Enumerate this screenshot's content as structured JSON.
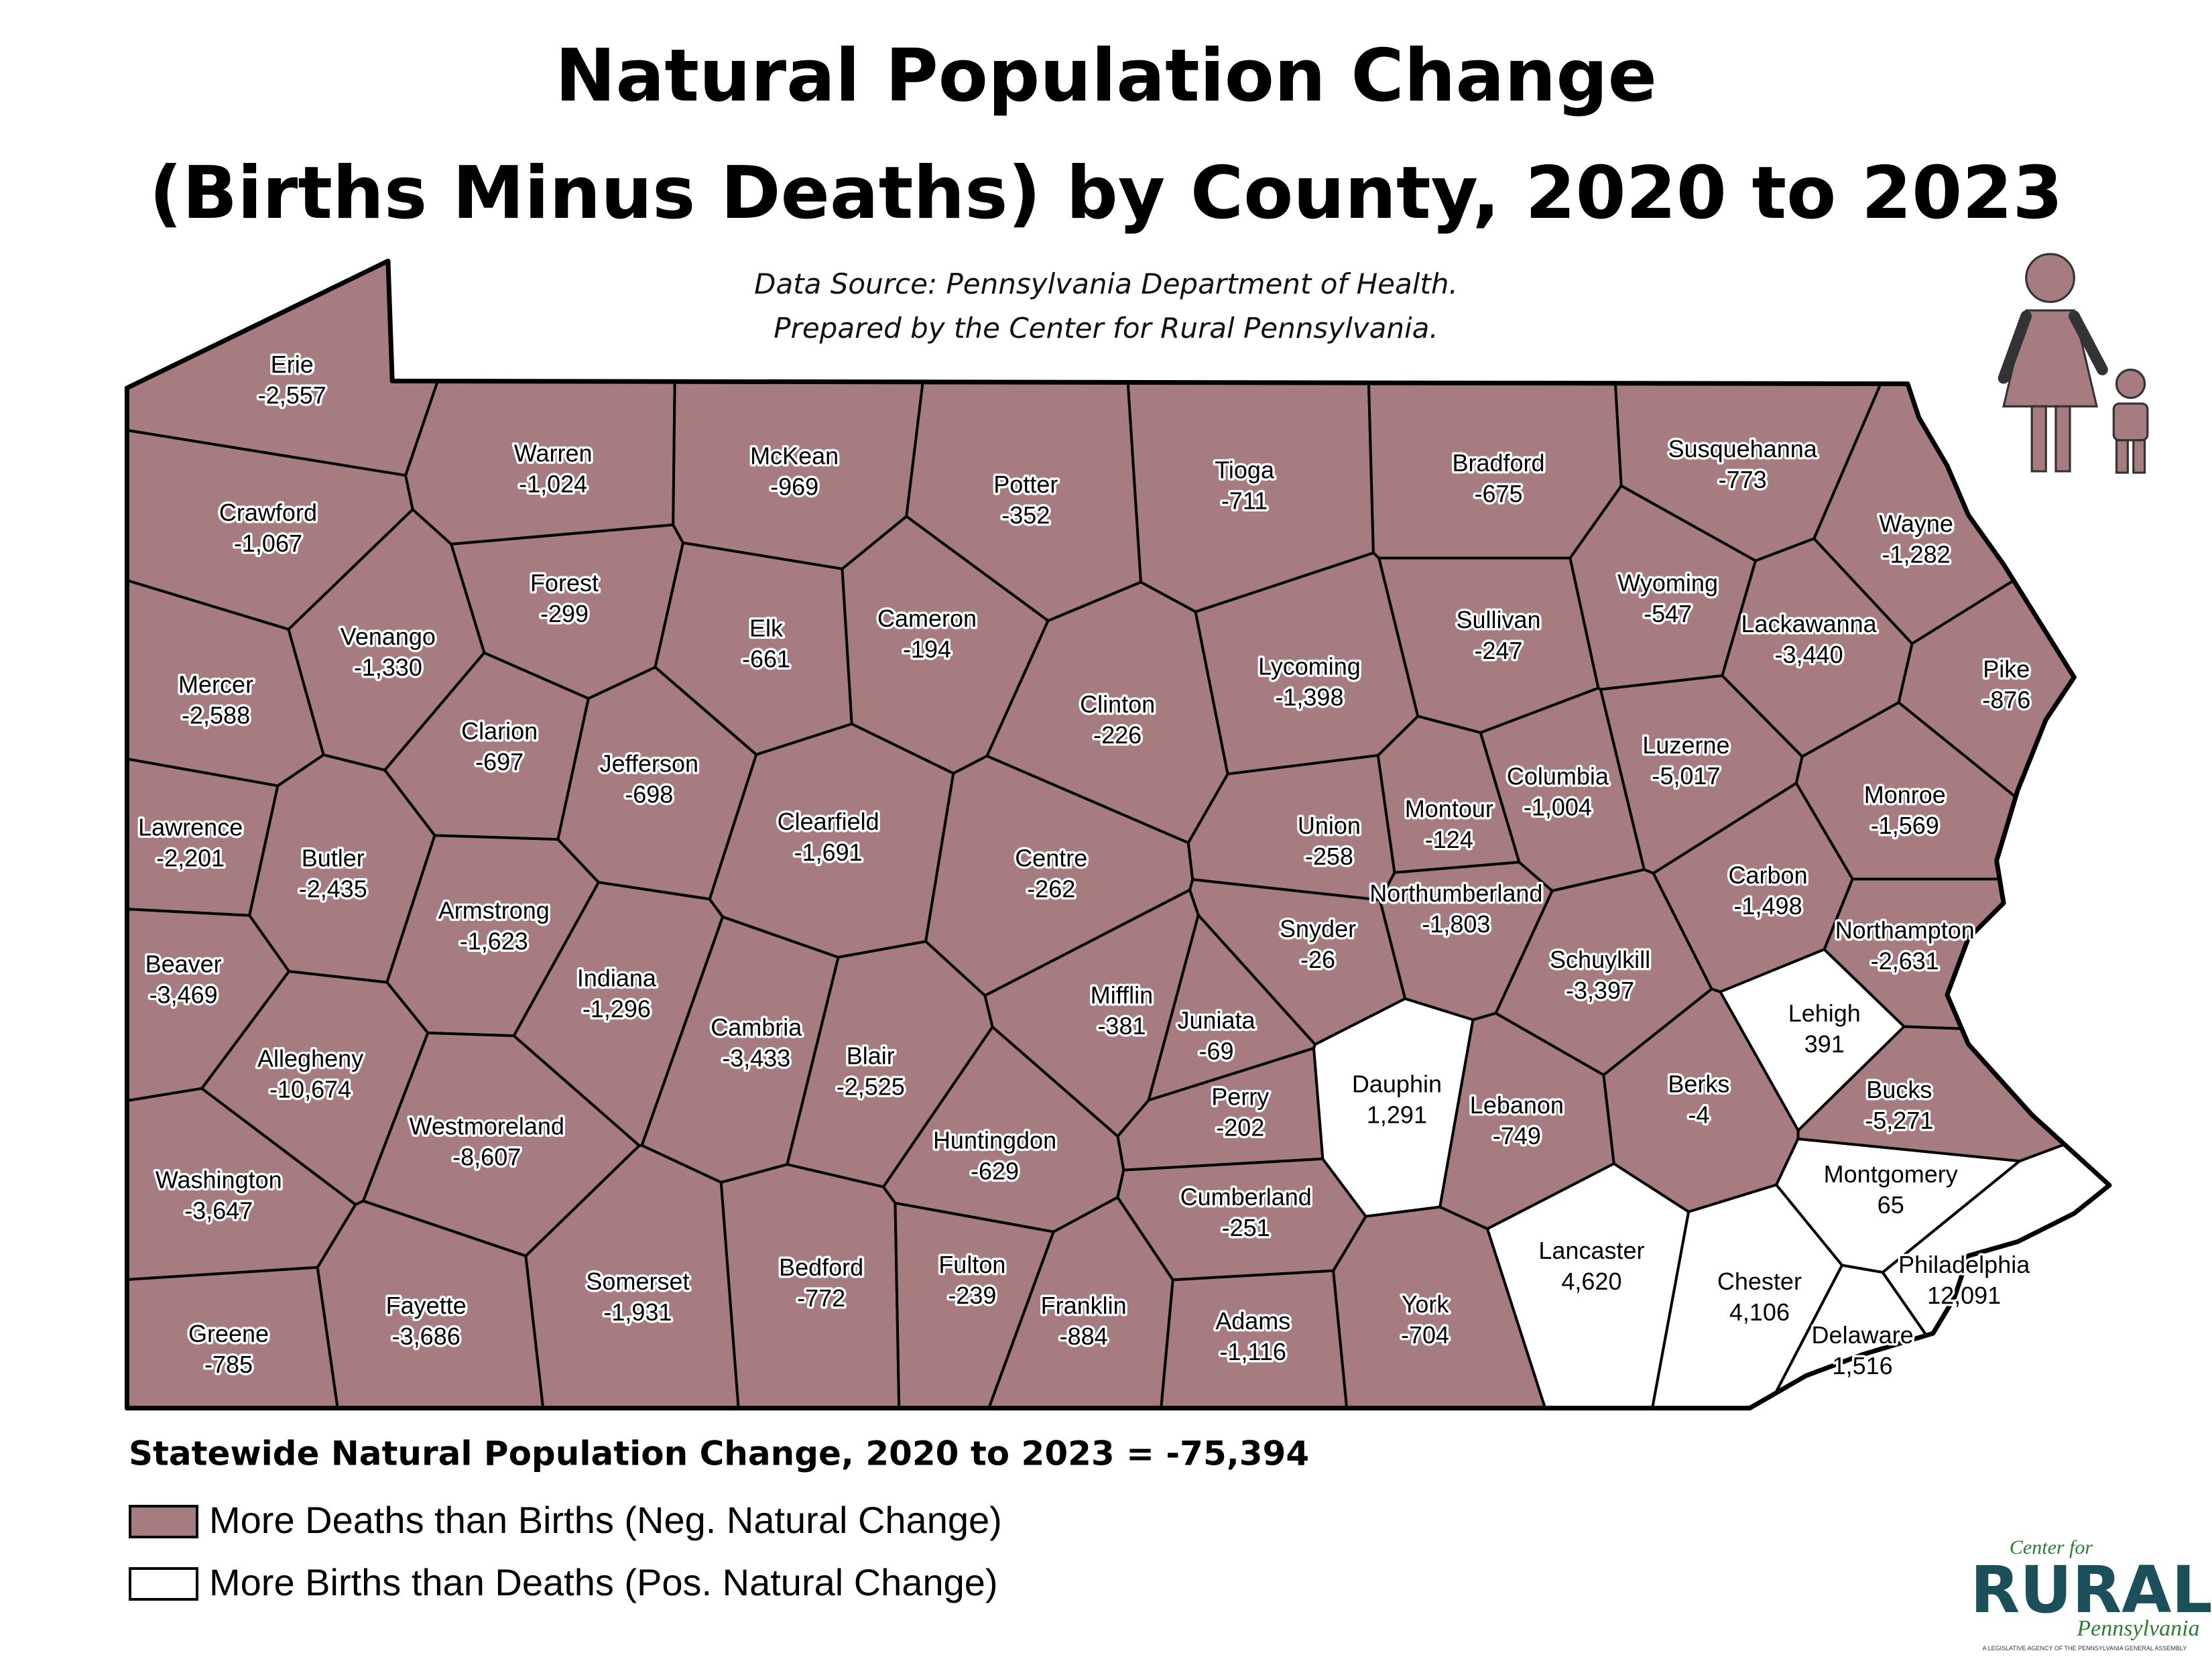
{
  "title": [
    "Natural Population Change",
    "(Births Minus Deaths) by County, 2020 to 2023"
  ],
  "source": [
    "Data Source: Pennsylvania Department of Health.",
    "Prepared by the Center for Rural Pennsylvania."
  ],
  "counties": [
    {
      "name": "Erie",
      "value": -2557,
      "value_label": "-2,557"
    },
    {
      "name": "Crawford",
      "value": -1067,
      "value_label": "-1,067"
    },
    {
      "name": "Mercer",
      "value": -2588,
      "value_label": "-2,588"
    },
    {
      "name": "Lawrence",
      "value": -2201,
      "value_label": "-2,201"
    },
    {
      "name": "Beaver",
      "value": -3469,
      "value_label": "-3,469"
    },
    {
      "name": "Washington",
      "value": -3647,
      "value_label": "-3,647"
    },
    {
      "name": "Greene",
      "value": -785,
      "value_label": "-785"
    },
    {
      "name": "Warren",
      "value": -1024,
      "value_label": "-1,024"
    },
    {
      "name": "Forest",
      "value": -299,
      "value_label": "-299"
    },
    {
      "name": "Venango",
      "value": -1330,
      "value_label": "-1,330"
    },
    {
      "name": "Clarion",
      "value": -697,
      "value_label": "-697"
    },
    {
      "name": "Butler",
      "value": -2435,
      "value_label": "-2,435"
    },
    {
      "name": "Armstrong",
      "value": -1623,
      "value_label": "-1,623"
    },
    {
      "name": "Allegheny",
      "value": -10674,
      "value_label": "-10,674"
    },
    {
      "name": "Westmoreland",
      "value": -8607,
      "value_label": "-8,607"
    },
    {
      "name": "Fayette",
      "value": -3686,
      "value_label": "-3,686"
    },
    {
      "name": "McKean",
      "value": -969,
      "value_label": "-969"
    },
    {
      "name": "Elk",
      "value": -661,
      "value_label": "-661"
    },
    {
      "name": "Jefferson",
      "value": -698,
      "value_label": "-698"
    },
    {
      "name": "Indiana",
      "value": -1296,
      "value_label": "-1,296"
    },
    {
      "name": "Cambria",
      "value": -3433,
      "value_label": "-3,433"
    },
    {
      "name": "Somerset",
      "value": -1931,
      "value_label": "-1,931"
    },
    {
      "name": "Potter",
      "value": -352,
      "value_label": "-352"
    },
    {
      "name": "Cameron",
      "value": -194,
      "value_label": "-194"
    },
    {
      "name": "Clearfield",
      "value": -1691,
      "value_label": "-1,691"
    },
    {
      "name": "Centre",
      "value": -262,
      "value_label": "-262"
    },
    {
      "name": "Blair",
      "value": -2525,
      "value_label": "-2,525"
    },
    {
      "name": "Bedford",
      "value": -772,
      "value_label": "-772"
    },
    {
      "name": "Huntingdon",
      "value": -629,
      "value_label": "-629"
    },
    {
      "name": "Fulton",
      "value": -239,
      "value_label": "-239"
    },
    {
      "name": "Tioga",
      "value": -711,
      "value_label": "-711"
    },
    {
      "name": "Clinton",
      "value": -226,
      "value_label": "-226"
    },
    {
      "name": "Lycoming",
      "value": -1398,
      "value_label": "-1,398"
    },
    {
      "name": "Mifflin",
      "value": -381,
      "value_label": "-381"
    },
    {
      "name": "Juniata",
      "value": -69,
      "value_label": "-69"
    },
    {
      "name": "Franklin",
      "value": -884,
      "value_label": "-884"
    },
    {
      "name": "Bradford",
      "value": -675,
      "value_label": "-675"
    },
    {
      "name": "Sullivan",
      "value": -247,
      "value_label": "-247"
    },
    {
      "name": "Union",
      "value": -258,
      "value_label": "-258"
    },
    {
      "name": "Snyder",
      "value": -26,
      "value_label": "-26"
    },
    {
      "name": "Perry",
      "value": -202,
      "value_label": "-202"
    },
    {
      "name": "Cumberland",
      "value": -251,
      "value_label": "-251"
    },
    {
      "name": "Adams",
      "value": -1116,
      "value_label": "-1,116"
    },
    {
      "name": "Montour",
      "value": -124,
      "value_label": "-124"
    },
    {
      "name": "Northumberland",
      "value": -1803,
      "value_label": "-1,803"
    },
    {
      "name": "Columbia",
      "value": -1004,
      "value_label": "-1,004"
    },
    {
      "name": "Dauphin",
      "value": 1291,
      "value_label": "1,291"
    },
    {
      "name": "York",
      "value": -704,
      "value_label": "-704"
    },
    {
      "name": "Lebanon",
      "value": -749,
      "value_label": "-749"
    },
    {
      "name": "Lancaster",
      "value": 4620,
      "value_label": "4,620"
    },
    {
      "name": "Susquehanna",
      "value": -773,
      "value_label": "-773"
    },
    {
      "name": "Wyoming",
      "value": -547,
      "value_label": "-547"
    },
    {
      "name": "Lackawanna",
      "value": -3440,
      "value_label": "-3,440"
    },
    {
      "name": "Luzerne",
      "value": -5017,
      "value_label": "-5,017"
    },
    {
      "name": "Schuylkill",
      "value": -3397,
      "value_label": "-3,397"
    },
    {
      "name": "Berks",
      "value": -4,
      "value_label": "-4"
    },
    {
      "name": "Chester",
      "value": 4106,
      "value_label": "4,106"
    },
    {
      "name": "Carbon",
      "value": -1498,
      "value_label": "-1,498"
    },
    {
      "name": "Lehigh",
      "value": 391,
      "value_label": "391"
    },
    {
      "name": "Montgomery",
      "value": 65,
      "value_label": "65"
    },
    {
      "name": "Delaware",
      "value": 1516,
      "value_label": "1,516"
    },
    {
      "name": "Philadelphia",
      "value": 12091,
      "value_label": "12,091"
    },
    {
      "name": "Bucks",
      "value": -5271,
      "value_label": "-5,271"
    },
    {
      "name": "Northampton",
      "value": -2631,
      "value_label": "-2,631"
    },
    {
      "name": "Monroe",
      "value": -1569,
      "value_label": "-1,569"
    },
    {
      "name": "Wayne",
      "value": -1282,
      "value_label": "-1,282"
    },
    {
      "name": "Pike",
      "value": -876,
      "value_label": "-876"
    }
  ],
  "statewide": "Statewide Natural Population Change, 2020 to 2023 = -75,394",
  "legend": [
    {
      "label": "More Deaths than Births (Neg. Natural Change)",
      "color": "#a67c80"
    },
    {
      "label": "More Births than Deaths (Pos. Natural Change)",
      "color": "#ffffff"
    }
  ],
  "logo": {
    "top": "Center for",
    "main": "RURAL",
    "bottom": "Pennsylvania",
    "tagline": "A LEGISLATIVE AGENCY OF THE PENNSYLVANIA GENERAL ASSEMBLY"
  }
}
